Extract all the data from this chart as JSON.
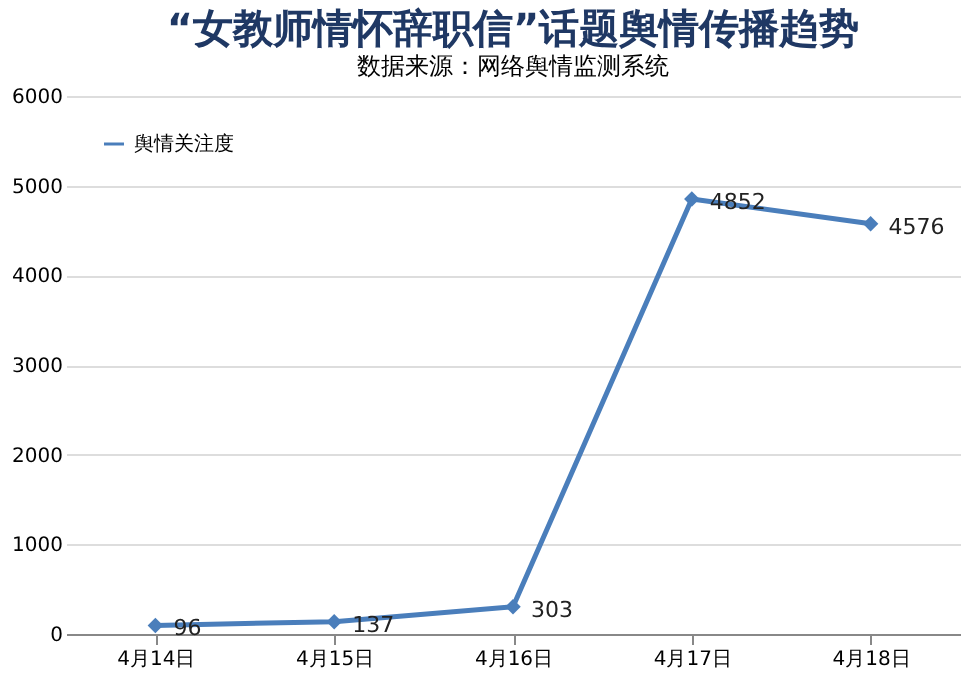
{
  "chart_data": {
    "type": "line",
    "title": "“女教师情怀辞职信”话题舆情传播趋势",
    "subtitle": "数据来源：网络舆情监测系统",
    "categories": [
      "4月14日",
      "4月15日",
      "4月16日",
      "4月17日",
      "4月18日"
    ],
    "series": [
      {
        "name": "舆情关注度",
        "color": "#4a7ebb",
        "values": [
          96,
          137,
          303,
          4852,
          4576
        ]
      }
    ],
    "ylim": [
      0,
      6000
    ],
    "yticks": [
      0,
      1000,
      2000,
      3000,
      4000,
      5000,
      6000
    ],
    "grid": "y",
    "legend": "top left",
    "marker": "diamond",
    "line_style": "solid",
    "data_labels": true
  }
}
